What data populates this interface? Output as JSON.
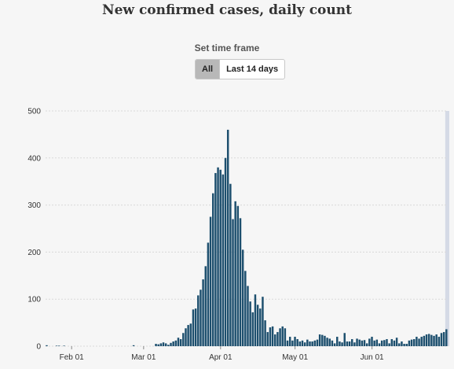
{
  "title": "New confirmed cases, daily count",
  "controls": {
    "label": "Set time frame",
    "buttons": [
      "All",
      "Last 14 days"
    ],
    "selected": "All"
  },
  "colors": {
    "bar": "#1d4f6e",
    "highlight_band": "#d5dae6",
    "grid": "#d9d9d9"
  },
  "chart_data": {
    "type": "bar",
    "title": "New confirmed cases, daily count",
    "xlabel": "",
    "ylabel": "",
    "ylim": [
      0,
      500
    ],
    "yticks": [
      0,
      100,
      200,
      300,
      400,
      500
    ],
    "grid": true,
    "x_start": "Jan 22",
    "xticks": [
      {
        "label": "Feb 01",
        "day": 10
      },
      {
        "label": "Mar 01",
        "day": 39
      },
      {
        "label": "Apr 01",
        "day": 70
      },
      {
        "label": "May 01",
        "day": 100
      },
      {
        "label": "Jun 01",
        "day": 131
      }
    ],
    "highlighted_last_days": 1,
    "values": [
      2,
      0,
      0,
      0,
      1,
      1,
      0,
      1,
      0,
      0,
      0,
      0,
      0,
      0,
      0,
      0,
      0,
      0,
      0,
      0,
      0,
      0,
      0,
      0,
      0,
      0,
      0,
      0,
      0,
      0,
      0,
      0,
      0,
      0,
      0,
      2,
      0,
      0,
      0,
      0,
      0,
      0,
      0,
      0,
      5,
      4,
      6,
      8,
      6,
      3,
      7,
      10,
      12,
      18,
      15,
      28,
      38,
      45,
      48,
      78,
      80,
      108,
      120,
      142,
      170,
      220,
      275,
      325,
      368,
      380,
      375,
      365,
      400,
      460,
      345,
      270,
      308,
      298,
      272,
      205,
      160,
      128,
      95,
      72,
      110,
      88,
      80,
      105,
      55,
      30,
      40,
      42,
      25,
      30,
      38,
      42,
      38,
      12,
      20,
      12,
      20,
      15,
      10,
      12,
      8,
      14,
      10,
      10,
      12,
      14,
      25,
      24,
      22,
      18,
      16,
      12,
      6,
      20,
      10,
      8,
      28,
      10,
      10,
      15,
      8,
      16,
      14,
      12,
      13,
      6,
      16,
      20,
      12,
      14,
      6,
      12,
      13,
      15,
      6,
      15,
      12,
      18,
      6,
      10,
      5,
      5,
      12,
      14,
      15,
      20,
      16,
      20,
      22,
      25,
      26,
      24,
      22,
      25,
      20,
      28,
      30,
      36
    ]
  }
}
